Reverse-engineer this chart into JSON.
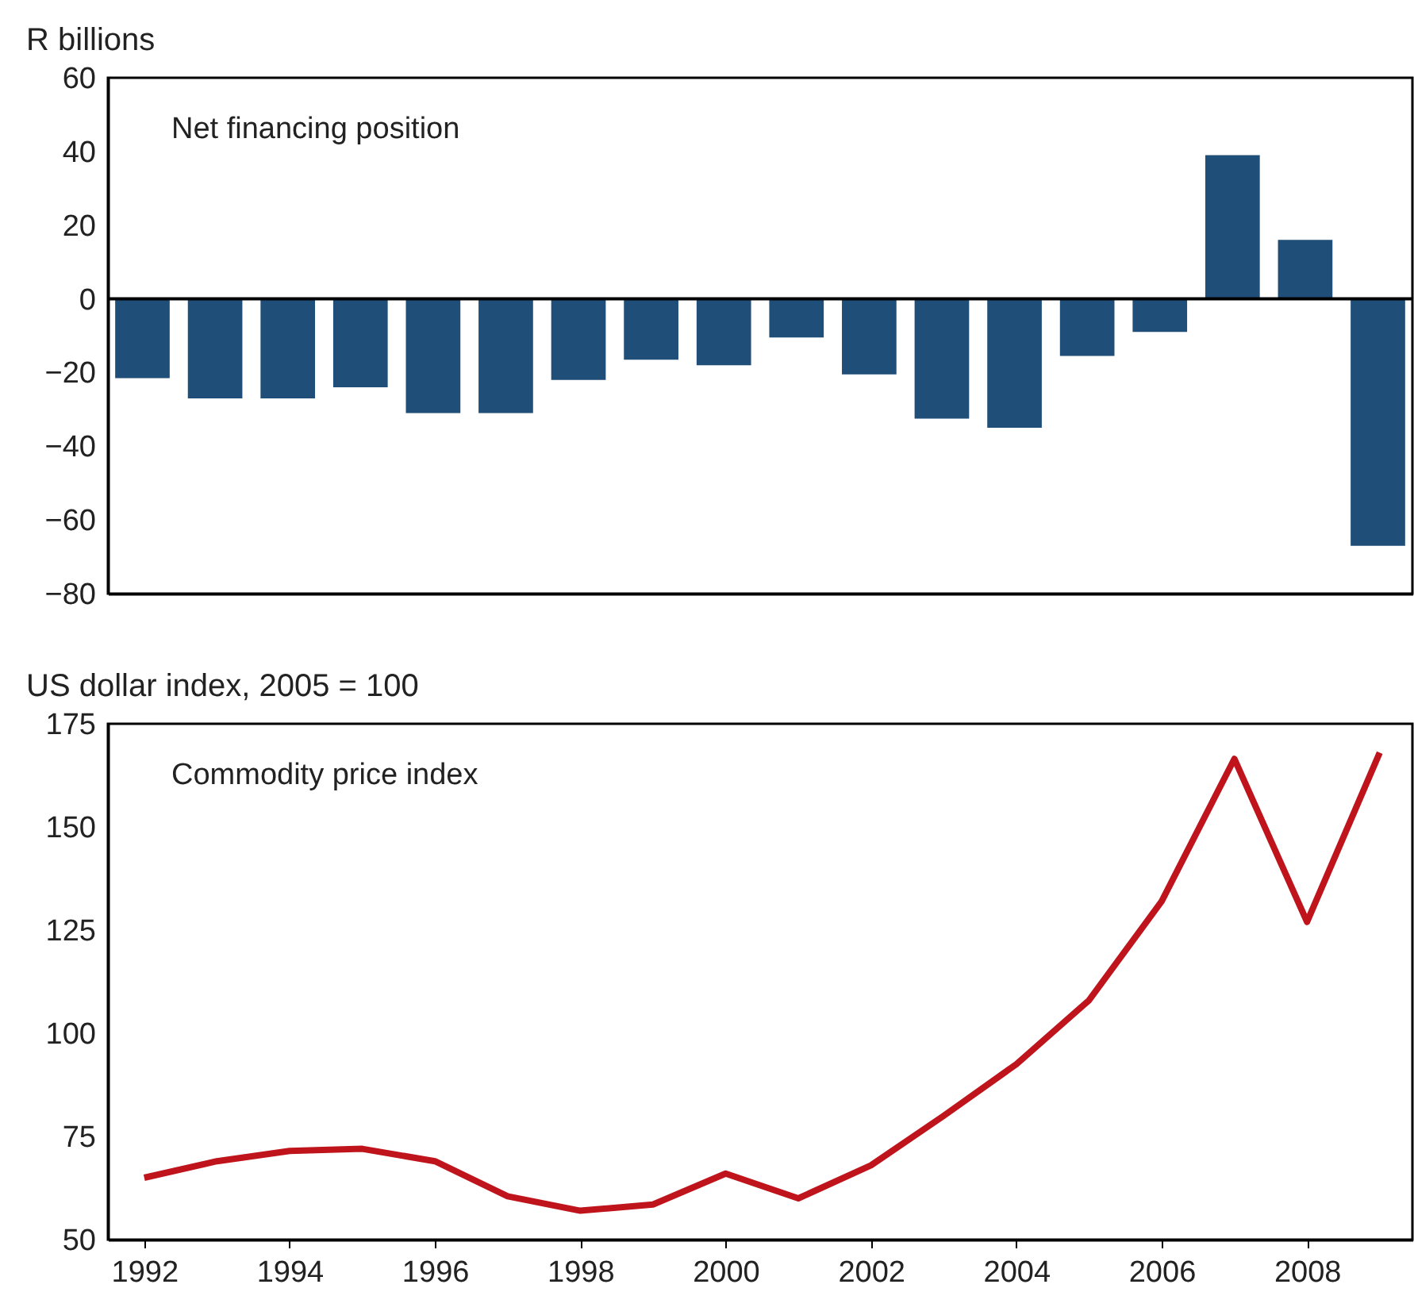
{
  "chart_data": [
    {
      "type": "bar",
      "ylabel": "R billions",
      "annotations": [
        "Net financing position"
      ],
      "categories": [
        null,
        null,
        null,
        null,
        null,
        null,
        null,
        null,
        null,
        null,
        null,
        null,
        null,
        null,
        null,
        null,
        null,
        null
      ],
      "series": [
        {
          "color": "#1f4e79",
          "values": [
            -21.5,
            -27,
            -27,
            -24,
            -31,
            -31,
            -22,
            -16.5,
            -18,
            -10.5,
            -20.5,
            -32.5,
            -35,
            -15.5,
            -9,
            39,
            16,
            -67
          ]
        }
      ],
      "ylim": [
        -80,
        60
      ],
      "yticks": [
        -80,
        -60,
        -40,
        -20,
        0,
        20,
        40,
        60
      ],
      "tick_labels": "y",
      "grid": false,
      "ref_lines": [
        {
          "axis": "y",
          "value": 0,
          "color": "#000000"
        }
      ]
    },
    {
      "type": "line",
      "ylabel": "US dollar index, 2005 = 100",
      "annotations": [
        "Commodity price index"
      ],
      "x": [
        1992,
        1993,
        1994,
        1995,
        1996,
        1997,
        1998,
        1999,
        2000,
        2001,
        2002,
        2003,
        2004,
        2005,
        2006,
        2007,
        2008,
        2009
      ],
      "series": [
        {
          "color": "#c0141c",
          "values": [
            65,
            69,
            71.5,
            72,
            69,
            60.5,
            57,
            58.5,
            66,
            60,
            68,
            80,
            92.5,
            108,
            132,
            166.5,
            127,
            168
          ]
        }
      ],
      "xlim": [
        1991.5,
        2009.45
      ],
      "xticks": [
        1992,
        1994,
        1996,
        1998,
        2000,
        2002,
        2004,
        2006,
        2008
      ],
      "ylim": [
        50,
        175
      ],
      "yticks": [
        50,
        75,
        100,
        125,
        150,
        175
      ],
      "grid": false,
      "marker": "none",
      "line_style": "solid"
    }
  ]
}
